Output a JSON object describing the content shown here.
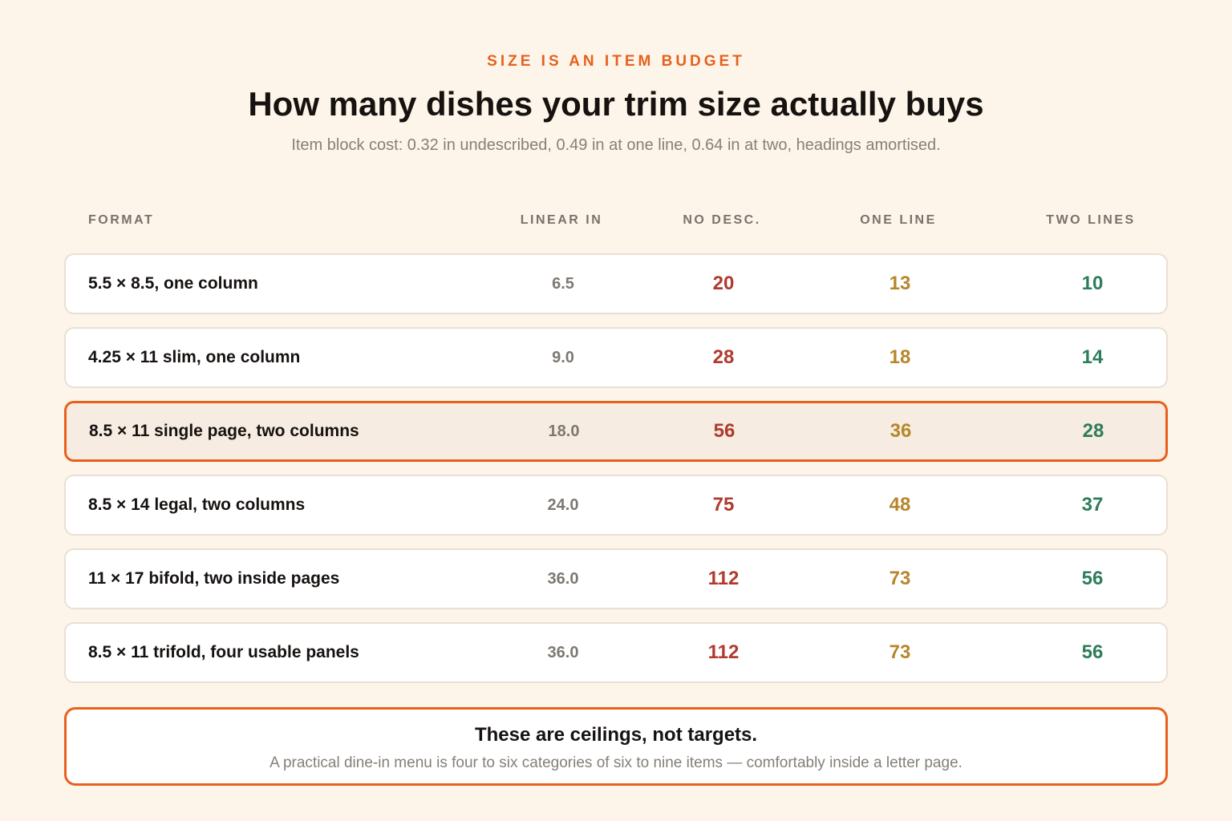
{
  "eyebrow": "SIZE IS AN ITEM BUDGET",
  "title": "How many dishes your trim size actually buys",
  "subtitle": "Item block cost: 0.32 in undescribed, 0.49 in at one line, 0.64 in at two, headings amortised.",
  "columns": {
    "format": "FORMAT",
    "linear": "LINEAR IN",
    "no_desc": "NO DESC.",
    "one_line": "ONE LINE",
    "two_lines": "TWO LINES"
  },
  "rows": [
    {
      "format": "5.5 × 8.5, one column",
      "linear": "6.5",
      "no_desc": "20",
      "one_line": "13",
      "two_lines": "10",
      "highlighted": false
    },
    {
      "format": "4.25 × 11 slim, one column",
      "linear": "9.0",
      "no_desc": "28",
      "one_line": "18",
      "two_lines": "14",
      "highlighted": false
    },
    {
      "format": "8.5 × 11 single page, two columns",
      "linear": "18.0",
      "no_desc": "56",
      "one_line": "36",
      "two_lines": "28",
      "highlighted": true
    },
    {
      "format": "8.5 × 14 legal, two columns",
      "linear": "24.0",
      "no_desc": "75",
      "one_line": "48",
      "two_lines": "37",
      "highlighted": false
    },
    {
      "format": "11 × 17 bifold, two inside pages",
      "linear": "36.0",
      "no_desc": "112",
      "one_line": "73",
      "two_lines": "56",
      "highlighted": false
    },
    {
      "format": "8.5 × 11 trifold, four usable panels",
      "linear": "36.0",
      "no_desc": "112",
      "one_line": "73",
      "two_lines": "56",
      "highlighted": false
    }
  ],
  "callout": {
    "title": "These are ceilings, not targets.",
    "body": "A practical dine-in menu is four to six categories of six to nine items — comfortably inside a letter page."
  },
  "colors": {
    "accent": "#e8601c",
    "no_desc": "#b03a2e",
    "one_line": "#b7862a",
    "two_lines": "#2e7d5a",
    "background": "#fdf5ea"
  }
}
